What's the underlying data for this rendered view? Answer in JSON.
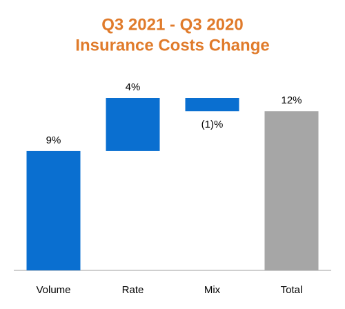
{
  "chart_data": {
    "type": "waterfall",
    "title": [
      "Q3 2021 - Q3 2020",
      "Insurance Costs Change"
    ],
    "categories": [
      "Volume",
      "Rate",
      "Mix",
      "Total"
    ],
    "values": [
      9,
      4,
      -1,
      12
    ],
    "value_labels": [
      "9%",
      "4%",
      "(1)%",
      "12%"
    ],
    "colors": [
      "#0a6fd0",
      "#0a6fd0",
      "#0a6fd0",
      "#a6a6a6"
    ]
  }
}
